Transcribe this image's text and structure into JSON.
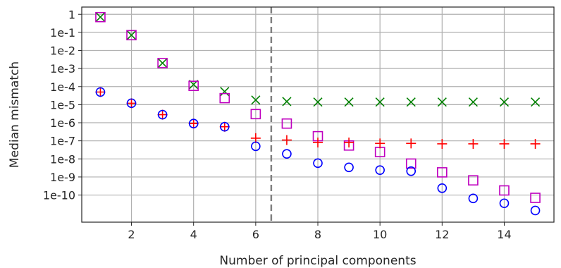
{
  "chart_data": {
    "type": "scatter",
    "xlabel": "Number of principal components",
    "ylabel": "Median mismatch",
    "xlim": [
      0.4,
      15.6
    ],
    "ylim": [
      -11.5,
      0.4
    ],
    "y_scale": "log",
    "x_ticks": [
      2,
      4,
      6,
      8,
      10,
      12,
      14
    ],
    "x_tick_labels": [
      "2",
      "4",
      "6",
      "8",
      "10",
      "12",
      "14"
    ],
    "y_ticks": [
      1,
      0.1,
      0.01,
      0.001,
      0.0001,
      1e-05,
      1e-06,
      1e-07,
      1e-08,
      1e-09,
      1e-10
    ],
    "y_tick_labels": [
      "1",
      "1e-1",
      "1e-2",
      "1e-3",
      "1e-4",
      "1e-5",
      "1e-6",
      "1e-7",
      "1e-8",
      "1e-9",
      "1e-10"
    ],
    "grid": true,
    "vertical_line": {
      "x": 6.5,
      "style": "dashed",
      "color": "#808080"
    },
    "series": [
      {
        "marker": "x",
        "color": "#008000",
        "x": [
          1,
          2,
          3,
          4,
          5,
          6,
          7,
          8,
          9,
          10,
          11,
          12,
          13,
          14,
          15
        ],
        "y": [
          0.7,
          0.07,
          0.002,
          0.00013,
          5.3e-05,
          1.8e-05,
          1.5e-05,
          1.4e-05,
          1.4e-05,
          1.4e-05,
          1.4e-05,
          1.4e-05,
          1.4e-05,
          1.4e-05,
          1.4e-05
        ]
      },
      {
        "marker": "square",
        "color": "#bf00bf",
        "x": [
          1,
          2,
          3,
          4,
          5,
          6,
          7,
          8,
          9,
          10,
          11,
          12,
          13,
          14,
          15
        ],
        "y": [
          0.7,
          0.07,
          0.002,
          0.00011,
          2.3e-05,
          3e-06,
          9e-07,
          1.8e-07,
          5.5e-08,
          2.4e-08,
          5.5e-09,
          1.8e-09,
          6.5e-10,
          1.8e-10,
          7e-11
        ]
      },
      {
        "marker": "plus",
        "color": "#ff0000",
        "x": [
          1,
          2,
          3,
          4,
          5,
          6,
          7,
          8,
          9,
          10,
          11,
          12,
          13,
          14,
          15
        ],
        "y": [
          5e-05,
          1.2e-05,
          2.8e-06,
          9e-07,
          6e-07,
          1.4e-07,
          1.1e-07,
          8e-08,
          8e-08,
          7.2e-08,
          7.2e-08,
          6.8e-08,
          6.8e-08,
          6.8e-08,
          6.8e-08
        ]
      },
      {
        "marker": "circle",
        "color": "#0000ff",
        "x": [
          1,
          2,
          3,
          4,
          5,
          6,
          7,
          8,
          9,
          10,
          11,
          12,
          13,
          14,
          15
        ],
        "y": [
          5e-05,
          1.2e-05,
          2.8e-06,
          9e-07,
          6e-07,
          5e-08,
          1.9e-08,
          5.8e-09,
          3.4e-09,
          2.4e-09,
          2.1e-09,
          2.4e-10,
          6.5e-11,
          3.5e-11,
          1.4e-11
        ]
      }
    ]
  }
}
